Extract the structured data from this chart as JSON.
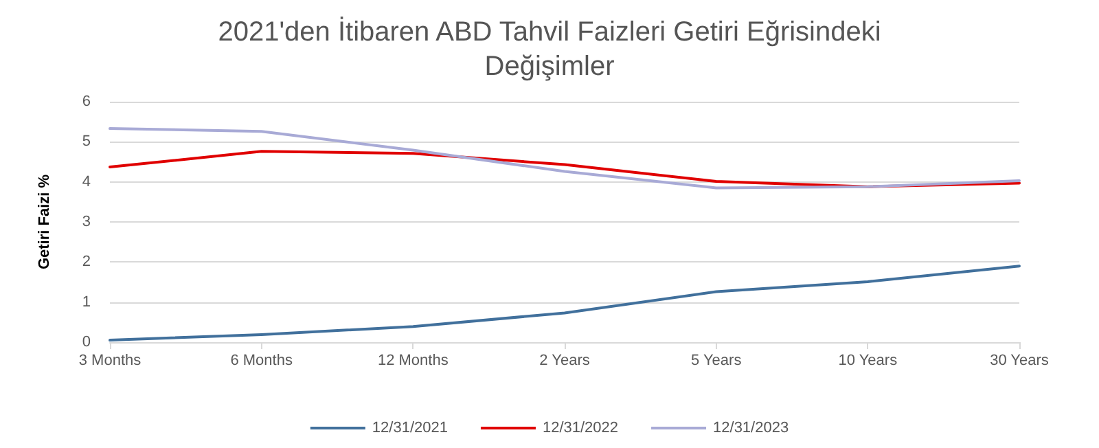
{
  "chart_data": {
    "type": "line",
    "title": "2021'den İtibaren ABD Tahvil Faizleri Getiri Eğrisindeki\nDeğişimler",
    "ylabel": "Getiri Faizi %",
    "categories": [
      "3 Months",
      "6 Months",
      "12 Months",
      "2 Years",
      "5 Years",
      "10 Years",
      "30 Years"
    ],
    "series": [
      {
        "name": "12/31/2021",
        "color": "#41709c",
        "values": [
          0.05,
          0.19,
          0.39,
          0.73,
          1.26,
          1.51,
          1.9
        ]
      },
      {
        "name": "12/31/2022",
        "color": "#e00000",
        "values": [
          4.37,
          4.76,
          4.71,
          4.43,
          4.01,
          3.88,
          3.97
        ]
      },
      {
        "name": "12/31/2023",
        "color": "#a8aad6",
        "values": [
          5.33,
          5.26,
          4.79,
          4.26,
          3.85,
          3.88,
          4.03
        ]
      }
    ],
    "ylim": [
      0,
      6
    ],
    "yticks": [
      0,
      1,
      2,
      3,
      4,
      5,
      6
    ],
    "grid": "y",
    "legend": "bottom",
    "marker": "none",
    "line_style": "solid"
  }
}
